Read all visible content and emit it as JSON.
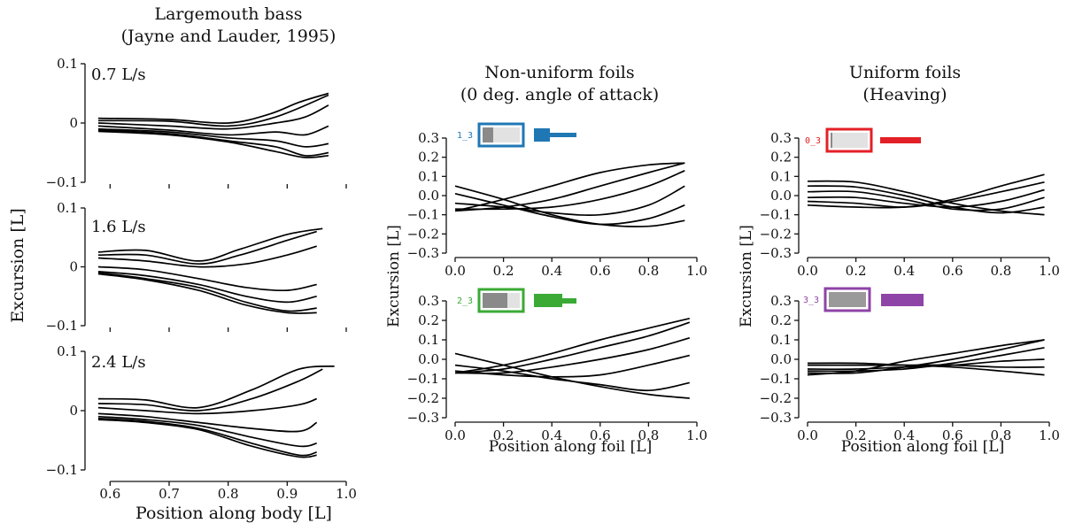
{
  "colors": {
    "blue": "#1f77b4",
    "green": "#3aaa35",
    "red": "#e32027",
    "purple": "#8e44a6"
  },
  "labels": {
    "left_title_1": "Largemouth bass",
    "left_title_2": "(Jayne and Lauder, 1995)",
    "mid_title_1": "Non-uniform foils",
    "mid_title_2": "(0 deg. angle of attack)",
    "right_title_1": "Uniform foils",
    "right_title_2": "(Heaving)",
    "left_ylabel": "Excursion [L]",
    "left_xlabel": "Position along body [L]",
    "mid_ylabel": "Excursion [L]",
    "mid_xlabel": "Position along foil [L]",
    "right_ylabel": "Excursion [L]",
    "right_xlabel": "Position along foil [L]"
  },
  "chart_data": [
    {
      "type": "line",
      "speed_label": "0.7 L/s",
      "xlim": [
        0.58,
        1.0
      ],
      "ylim": [
        -0.1,
        0.1
      ],
      "xticks": [
        "0.6",
        "0.7",
        "0.8",
        "0.9",
        "1.0"
      ],
      "yticks": [
        "0.1",
        "0",
        "−0.1"
      ],
      "series": [
        {
          "x": [
            0.58,
            0.7,
            0.8,
            0.87,
            0.92,
            0.97
          ],
          "y": [
            0.008,
            0.006,
            0.0,
            0.015,
            0.035,
            0.05
          ]
        },
        {
          "x": [
            0.58,
            0.7,
            0.8,
            0.88,
            0.97
          ],
          "y": [
            0.004,
            0.003,
            -0.005,
            0.01,
            0.047
          ]
        },
        {
          "x": [
            0.58,
            0.7,
            0.8,
            0.88,
            0.93,
            0.97
          ],
          "y": [
            0.0,
            -0.005,
            -0.01,
            0.0,
            0.01,
            0.03
          ]
        },
        {
          "x": [
            0.58,
            0.7,
            0.8,
            0.88,
            0.93,
            0.97
          ],
          "y": [
            -0.005,
            -0.012,
            -0.02,
            -0.015,
            -0.02,
            -0.005
          ]
        },
        {
          "x": [
            0.58,
            0.7,
            0.8,
            0.88,
            0.93,
            0.97
          ],
          "y": [
            -0.01,
            -0.015,
            -0.025,
            -0.03,
            -0.04,
            -0.035
          ]
        },
        {
          "x": [
            0.58,
            0.7,
            0.8,
            0.88,
            0.93,
            0.97
          ],
          "y": [
            -0.012,
            -0.018,
            -0.03,
            -0.04,
            -0.055,
            -0.05
          ]
        },
        {
          "x": [
            0.58,
            0.7,
            0.8,
            0.88,
            0.93,
            0.97
          ],
          "y": [
            -0.014,
            -0.02,
            -0.032,
            -0.048,
            -0.058,
            -0.055
          ]
        }
      ]
    },
    {
      "type": "line",
      "speed_label": "1.6 L/s",
      "xlim": [
        0.58,
        1.0
      ],
      "ylim": [
        -0.1,
        0.1
      ],
      "xticks": [
        "0.6",
        "0.7",
        "0.8",
        "0.9",
        "1.0"
      ],
      "yticks": [
        "0.1",
        "0",
        "−0.1"
      ],
      "series": [
        {
          "x": [
            0.58,
            0.66,
            0.75,
            0.82,
            0.9,
            0.96
          ],
          "y": [
            0.025,
            0.028,
            0.01,
            0.03,
            0.055,
            0.065
          ]
        },
        {
          "x": [
            0.58,
            0.66,
            0.75,
            0.82,
            0.9,
            0.95
          ],
          "y": [
            0.02,
            0.02,
            0.005,
            0.02,
            0.045,
            0.06
          ]
        },
        {
          "x": [
            0.58,
            0.66,
            0.75,
            0.83,
            0.9,
            0.95
          ],
          "y": [
            0.015,
            0.01,
            0.0,
            0.005,
            0.02,
            0.035
          ]
        },
        {
          "x": [
            0.58,
            0.66,
            0.75,
            0.83,
            0.9,
            0.95
          ],
          "y": [
            0.0,
            -0.005,
            -0.02,
            -0.035,
            -0.04,
            -0.03
          ]
        },
        {
          "x": [
            0.58,
            0.66,
            0.75,
            0.83,
            0.9,
            0.95
          ],
          "y": [
            -0.008,
            -0.015,
            -0.03,
            -0.05,
            -0.06,
            -0.05
          ]
        },
        {
          "x": [
            0.58,
            0.66,
            0.75,
            0.83,
            0.9,
            0.95
          ],
          "y": [
            -0.01,
            -0.02,
            -0.035,
            -0.06,
            -0.075,
            -0.07
          ]
        },
        {
          "x": [
            0.58,
            0.66,
            0.75,
            0.83,
            0.9,
            0.95
          ],
          "y": [
            -0.012,
            -0.022,
            -0.04,
            -0.065,
            -0.078,
            -0.078
          ]
        }
      ]
    },
    {
      "type": "line",
      "speed_label": "2.4 L/s",
      "xlim": [
        0.58,
        1.0
      ],
      "ylim": [
        -0.1,
        0.1
      ],
      "xticks": [
        "0.6",
        "0.7",
        "0.8",
        "0.9",
        "1.0"
      ],
      "yticks": [
        "0.1",
        "0",
        "−0.1"
      ],
      "series": [
        {
          "x": [
            0.58,
            0.66,
            0.75,
            0.84,
            0.92,
            0.98
          ],
          "y": [
            0.02,
            0.018,
            0.005,
            0.035,
            0.07,
            0.075
          ]
        },
        {
          "x": [
            0.58,
            0.66,
            0.75,
            0.84,
            0.92,
            0.96
          ],
          "y": [
            0.012,
            0.01,
            0.0,
            0.02,
            0.05,
            0.07
          ]
        },
        {
          "x": [
            0.58,
            0.66,
            0.75,
            0.84,
            0.92,
            0.95
          ],
          "y": [
            0.005,
            0.0,
            -0.005,
            0.0,
            0.01,
            0.02
          ]
        },
        {
          "x": [
            0.58,
            0.66,
            0.75,
            0.84,
            0.92,
            0.95
          ],
          "y": [
            -0.005,
            -0.01,
            -0.02,
            -0.03,
            -0.035,
            -0.02
          ]
        },
        {
          "x": [
            0.58,
            0.66,
            0.75,
            0.84,
            0.92,
            0.95
          ],
          "y": [
            -0.01,
            -0.015,
            -0.025,
            -0.045,
            -0.06,
            -0.055
          ]
        },
        {
          "x": [
            0.58,
            0.66,
            0.75,
            0.84,
            0.92,
            0.95
          ],
          "y": [
            -0.013,
            -0.018,
            -0.03,
            -0.055,
            -0.075,
            -0.07
          ]
        },
        {
          "x": [
            0.58,
            0.66,
            0.75,
            0.84,
            0.92,
            0.95
          ],
          "y": [
            -0.015,
            -0.02,
            -0.032,
            -0.06,
            -0.078,
            -0.075
          ]
        }
      ]
    },
    {
      "type": "line",
      "icon_code": "1_3",
      "icon_color": "blue",
      "xlim": [
        0.0,
        1.0
      ],
      "ylim": [
        -0.3,
        0.3
      ],
      "xticks": [
        "0.0",
        "0.2",
        "0.4",
        "0.6",
        "0.8",
        "1.0"
      ],
      "yticks": [
        "0.3",
        "0.2",
        "0.1",
        "0.0",
        "−0.1",
        "−0.2",
        "−0.3"
      ],
      "series": [
        {
          "x": [
            0.0,
            0.2,
            0.4,
            0.6,
            0.8,
            0.95
          ],
          "y": [
            -0.08,
            -0.02,
            0.05,
            0.12,
            0.16,
            0.17
          ]
        },
        {
          "x": [
            0.0,
            0.2,
            0.4,
            0.6,
            0.8,
            0.95
          ],
          "y": [
            -0.08,
            -0.06,
            -0.02,
            0.05,
            0.12,
            0.17
          ]
        },
        {
          "x": [
            0.0,
            0.2,
            0.4,
            0.6,
            0.8,
            0.95
          ],
          "y": [
            -0.07,
            -0.07,
            -0.06,
            -0.02,
            0.05,
            0.13
          ]
        },
        {
          "x": [
            0.0,
            0.2,
            0.4,
            0.6,
            0.8,
            0.95
          ],
          "y": [
            -0.04,
            -0.06,
            -0.09,
            -0.1,
            -0.05,
            0.05
          ]
        },
        {
          "x": [
            0.0,
            0.2,
            0.4,
            0.6,
            0.8,
            0.95
          ],
          "y": [
            0.01,
            -0.05,
            -0.11,
            -0.15,
            -0.12,
            -0.05
          ]
        },
        {
          "x": [
            0.0,
            0.2,
            0.4,
            0.6,
            0.8,
            0.95
          ],
          "y": [
            0.05,
            -0.02,
            -0.1,
            -0.15,
            -0.16,
            -0.13
          ]
        }
      ]
    },
    {
      "type": "line",
      "icon_code": "2_3",
      "icon_color": "green",
      "xlim": [
        0.0,
        1.0
      ],
      "ylim": [
        -0.3,
        0.3
      ],
      "xticks": [
        "0.0",
        "0.2",
        "0.4",
        "0.6",
        "0.8",
        "1.0"
      ],
      "yticks": [
        "0.3",
        "0.2",
        "0.1",
        "0.0",
        "−0.1",
        "−0.2",
        "−0.3"
      ],
      "series": [
        {
          "x": [
            0.0,
            0.2,
            0.4,
            0.6,
            0.8,
            0.97
          ],
          "y": [
            -0.07,
            -0.03,
            0.03,
            0.1,
            0.16,
            0.21
          ]
        },
        {
          "x": [
            0.0,
            0.2,
            0.4,
            0.6,
            0.8,
            0.97
          ],
          "y": [
            -0.07,
            -0.05,
            0.0,
            0.06,
            0.12,
            0.19
          ]
        },
        {
          "x": [
            0.0,
            0.2,
            0.4,
            0.6,
            0.8,
            0.97
          ],
          "y": [
            -0.07,
            -0.07,
            -0.04,
            0.0,
            0.05,
            0.11
          ]
        },
        {
          "x": [
            0.0,
            0.2,
            0.4,
            0.6,
            0.8,
            0.97
          ],
          "y": [
            -0.06,
            -0.08,
            -0.09,
            -0.08,
            -0.03,
            0.02
          ]
        },
        {
          "x": [
            0.0,
            0.2,
            0.4,
            0.6,
            0.8,
            0.97
          ],
          "y": [
            -0.03,
            -0.06,
            -0.1,
            -0.13,
            -0.16,
            -0.12
          ]
        },
        {
          "x": [
            0.0,
            0.2,
            0.4,
            0.6,
            0.8,
            0.97
          ],
          "y": [
            0.03,
            -0.03,
            -0.09,
            -0.14,
            -0.18,
            -0.2
          ]
        }
      ]
    },
    {
      "type": "line",
      "icon_code": "0_3",
      "icon_color": "red",
      "xlim": [
        0.0,
        1.0
      ],
      "ylim": [
        -0.3,
        0.3
      ],
      "xticks": [
        "0.0",
        "0.2",
        "0.4",
        "0.6",
        "0.8",
        "1.0"
      ],
      "yticks": [
        "0.3",
        "0.2",
        "0.1",
        "0.0",
        "−0.1",
        "−0.2",
        "−0.3"
      ],
      "series": [
        {
          "x": [
            0.0,
            0.2,
            0.4,
            0.6,
            0.8,
            0.98
          ],
          "y": [
            0.075,
            0.07,
            0.02,
            -0.04,
            -0.08,
            -0.1
          ]
        },
        {
          "x": [
            0.0,
            0.2,
            0.4,
            0.6,
            0.8,
            0.98
          ],
          "y": [
            0.05,
            0.045,
            0.0,
            -0.06,
            -0.09,
            -0.06
          ]
        },
        {
          "x": [
            0.0,
            0.2,
            0.4,
            0.6,
            0.8,
            0.98
          ],
          "y": [
            0.02,
            0.02,
            -0.02,
            -0.07,
            -0.07,
            -0.01
          ]
        },
        {
          "x": [
            0.0,
            0.2,
            0.4,
            0.6,
            0.8,
            0.98
          ],
          "y": [
            -0.01,
            -0.01,
            -0.04,
            -0.06,
            -0.03,
            0.03
          ]
        },
        {
          "x": [
            0.0,
            0.2,
            0.4,
            0.6,
            0.8,
            0.98
          ],
          "y": [
            -0.03,
            -0.04,
            -0.06,
            -0.03,
            0.02,
            0.07
          ]
        },
        {
          "x": [
            0.0,
            0.2,
            0.4,
            0.6,
            0.8,
            0.98
          ],
          "y": [
            -0.05,
            -0.06,
            -0.06,
            -0.02,
            0.05,
            0.11
          ]
        }
      ]
    },
    {
      "type": "line",
      "icon_code": "3_3",
      "icon_color": "purple",
      "xlim": [
        0.0,
        1.0
      ],
      "ylim": [
        -0.3,
        0.3
      ],
      "xticks": [
        "0.0",
        "0.2",
        "0.4",
        "0.6",
        "0.8",
        "1.0"
      ],
      "yticks": [
        "0.3",
        "0.2",
        "0.1",
        "0.0",
        "−0.1",
        "−0.2",
        "−0.3"
      ],
      "series": [
        {
          "x": [
            0.0,
            0.2,
            0.4,
            0.6,
            0.8,
            0.98
          ],
          "y": [
            -0.02,
            -0.02,
            -0.03,
            -0.04,
            -0.06,
            -0.08
          ]
        },
        {
          "x": [
            0.0,
            0.2,
            0.4,
            0.6,
            0.8,
            0.98
          ],
          "y": [
            -0.03,
            -0.03,
            -0.03,
            -0.03,
            -0.04,
            -0.04
          ]
        },
        {
          "x": [
            0.0,
            0.2,
            0.4,
            0.6,
            0.8,
            0.98
          ],
          "y": [
            -0.05,
            -0.05,
            -0.04,
            -0.03,
            -0.01,
            0.0
          ]
        },
        {
          "x": [
            0.0,
            0.2,
            0.4,
            0.6,
            0.8,
            0.98
          ],
          "y": [
            -0.06,
            -0.06,
            -0.05,
            -0.02,
            0.02,
            0.06
          ]
        },
        {
          "x": [
            0.0,
            0.2,
            0.4,
            0.6,
            0.8,
            0.98
          ],
          "y": [
            -0.07,
            -0.07,
            -0.04,
            0.0,
            0.05,
            0.1
          ]
        },
        {
          "x": [
            0.0,
            0.2,
            0.4,
            0.6,
            0.8,
            0.98
          ],
          "y": [
            -0.08,
            -0.06,
            -0.01,
            0.03,
            0.07,
            0.1
          ]
        }
      ]
    }
  ]
}
